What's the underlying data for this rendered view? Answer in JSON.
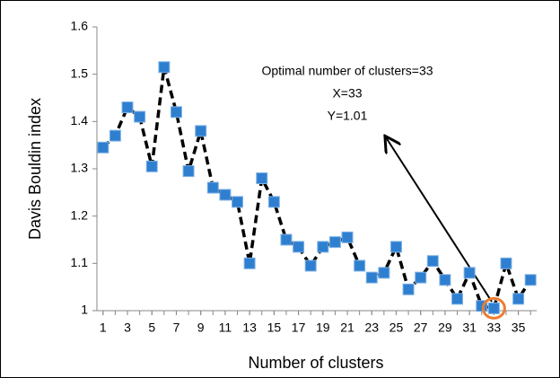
{
  "chart_data": {
    "type": "line",
    "x_label": "Number of clusters",
    "y_label": "Davis Bouldin index",
    "annotations": [
      "Optimal number of clusters=33",
      "X=33",
      "Y=1.01"
    ],
    "x": [
      1,
      2,
      3,
      4,
      5,
      6,
      7,
      8,
      9,
      10,
      11,
      12,
      13,
      14,
      15,
      16,
      17,
      18,
      19,
      20,
      21,
      22,
      23,
      24,
      25,
      26,
      27,
      28,
      29,
      30,
      31,
      32,
      33,
      34,
      35,
      36
    ],
    "series": [
      {
        "name": "Davis Bouldin index",
        "color": "#2f7fd0",
        "values": [
          1.345,
          1.37,
          1.43,
          1.41,
          1.305,
          1.515,
          1.42,
          1.295,
          1.38,
          1.26,
          1.245,
          1.23,
          1.1,
          1.28,
          1.23,
          1.15,
          1.135,
          1.095,
          1.135,
          1.145,
          1.155,
          1.095,
          1.07,
          1.08,
          1.135,
          1.045,
          1.07,
          1.105,
          1.065,
          1.025,
          1.08,
          1.01,
          1.005,
          1.1,
          1.025,
          1.065
        ]
      }
    ],
    "xlim": [
      0.5,
      36.5
    ],
    "xticks": [
      1,
      3,
      5,
      7,
      9,
      11,
      13,
      15,
      17,
      19,
      21,
      23,
      25,
      27,
      29,
      31,
      33,
      35
    ],
    "ylim": [
      1,
      1.6
    ],
    "yticks": [
      1,
      1.1,
      1.2,
      1.3,
      1.4,
      1.5,
      1.6
    ],
    "grid": false
  }
}
